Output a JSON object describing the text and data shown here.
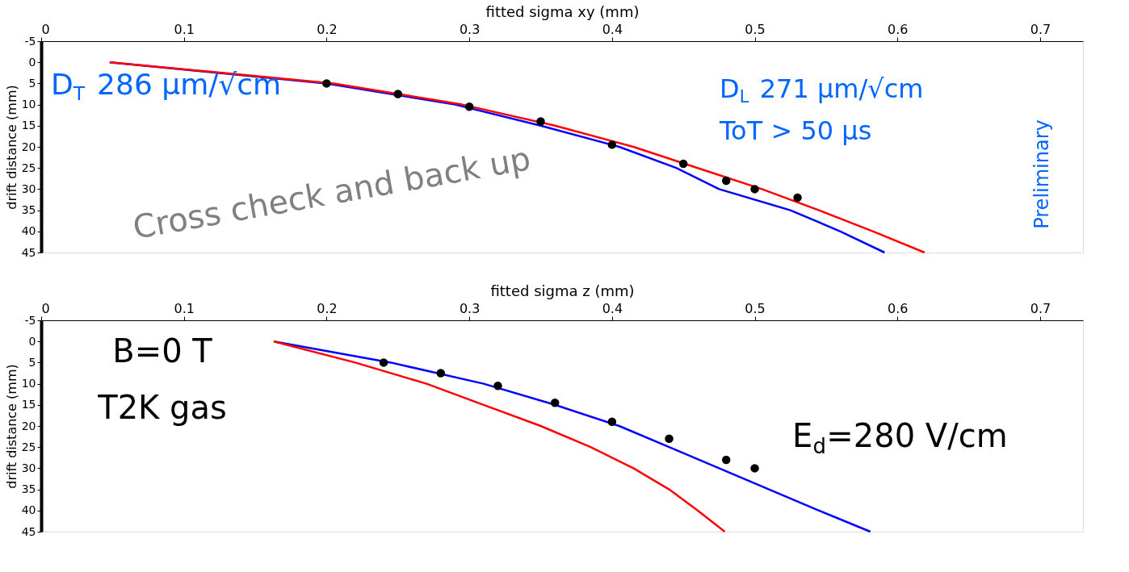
{
  "chart_data": [
    {
      "type": "line",
      "xlabel": "fitted sigma xy (mm)",
      "ylabel": "drift distance (mm)",
      "xlim": [
        0,
        0.73
      ],
      "ylim": [
        45,
        -5
      ],
      "xticks": [
        0,
        0.1,
        0.2,
        0.3,
        0.4,
        0.5,
        0.6,
        0.7
      ],
      "yticks": [
        -5,
        0,
        5,
        10,
        15,
        20,
        25,
        30,
        35,
        40,
        45
      ],
      "grid": false,
      "series": [
        {
          "type": "scatter",
          "color": "#000000",
          "x": [
            0.2,
            0.25,
            0.3,
            0.35,
            0.4,
            0.45,
            0.48,
            0.5,
            0.53
          ],
          "values": [
            5,
            7.5,
            10.5,
            14,
            19.5,
            24,
            28,
            30,
            32
          ]
        },
        {
          "color": "#ff0000",
          "x": [
            0.048,
            0.205,
            0.295,
            0.36,
            0.415,
            0.46,
            0.505,
            0.545,
            0.583,
            0.619
          ],
          "values": [
            0,
            5,
            10,
            15,
            20,
            25,
            30,
            35,
            40,
            45
          ]
        },
        {
          "color": "#0000ff",
          "x": [
            0.048,
            0.2,
            0.29,
            0.35,
            0.405,
            0.445,
            0.475,
            0.525,
            0.56,
            0.591
          ],
          "values": [
            0,
            5,
            10,
            15,
            20,
            25,
            30,
            35,
            40,
            45
          ]
        }
      ],
      "annotations": [
        "D$_{T}$ 286 μm/√cm",
        "D$_{L}$ 271 μm/√cm",
        "ToT > 50 μs",
        "Preliminary",
        "Cross check and back up"
      ]
    },
    {
      "type": "line",
      "xlabel": "fitted sigma z (mm)",
      "ylabel": "drift distance (mm)",
      "xlim": [
        0,
        0.73
      ],
      "ylim": [
        45,
        -5
      ],
      "xticks": [
        0,
        0.1,
        0.2,
        0.3,
        0.4,
        0.5,
        0.6,
        0.7
      ],
      "yticks": [
        -5,
        0,
        5,
        10,
        15,
        20,
        25,
        30,
        35,
        40,
        45
      ],
      "grid": false,
      "series": [
        {
          "type": "scatter",
          "color": "#000000",
          "x": [
            0.24,
            0.28,
            0.32,
            0.36,
            0.4,
            0.44,
            0.48,
            0.5
          ],
          "values": [
            5,
            7.5,
            10.5,
            14.5,
            19,
            23,
            28,
            30
          ]
        },
        {
          "color": "#ff0000",
          "x": [
            0.163,
            0.22,
            0.27,
            0.31,
            0.35,
            0.385,
            0.415,
            0.44,
            0.46,
            0.479
          ],
          "values": [
            0,
            5,
            10,
            15,
            20,
            25,
            30,
            35,
            40,
            45
          ]
        },
        {
          "color": "#0000ff",
          "x": [
            0.163,
            0.245,
            0.31,
            0.36,
            0.405,
            0.44,
            0.475,
            0.51,
            0.545,
            0.581
          ],
          "values": [
            0,
            5,
            10,
            15,
            20,
            25,
            30,
            35,
            40,
            45
          ]
        }
      ],
      "annotations": [
        "B=0 T",
        "T2K gas",
        "E$_{d}$=280 V/cm"
      ]
    }
  ]
}
